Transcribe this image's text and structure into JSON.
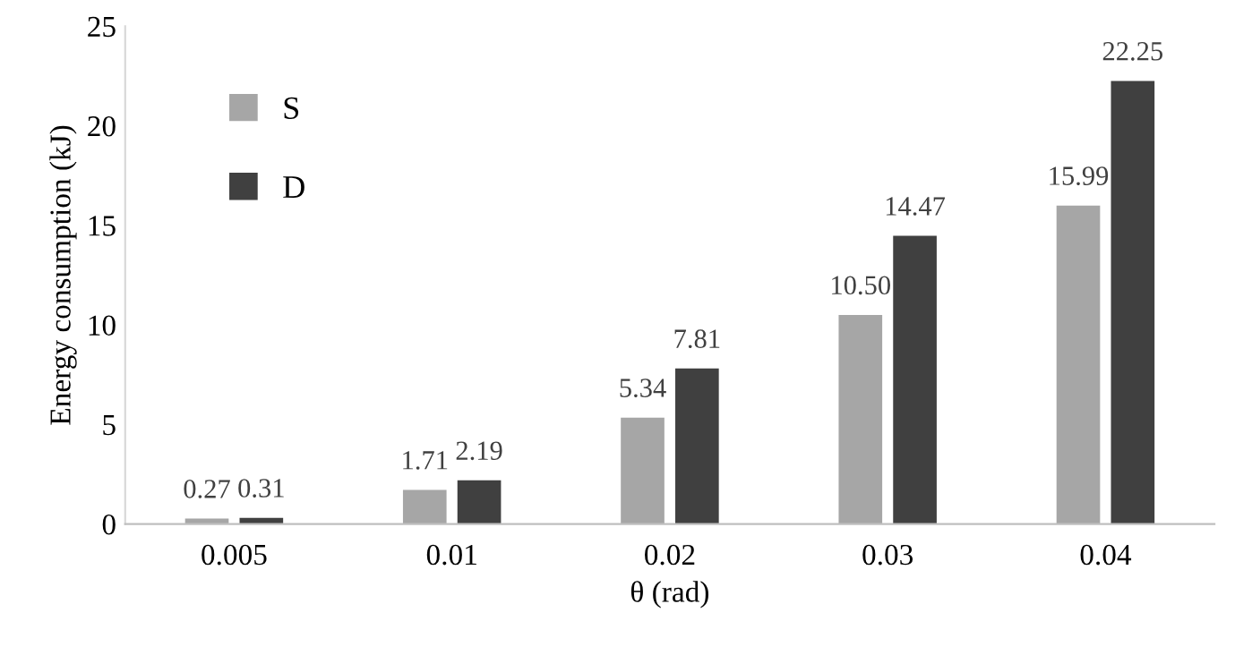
{
  "chart_data": {
    "type": "bar",
    "xlabel": "θ (rad)",
    "ylabel": "Energy consumption (kJ)",
    "categories": [
      "0.005",
      "0.01",
      "0.02",
      "0.03",
      "0.04"
    ],
    "series": [
      {
        "name": "S",
        "color": "#a6a6a6",
        "values": [
          0.27,
          1.71,
          5.34,
          10.5,
          15.99
        ],
        "value_labels": [
          "0.27",
          "1.71",
          "5.34",
          "10.50",
          "15.99"
        ]
      },
      {
        "name": "D",
        "color": "#404040",
        "values": [
          0.31,
          2.19,
          7.81,
          14.47,
          22.25
        ],
        "value_labels": [
          "0.31",
          "2.19",
          "7.81",
          "14.47",
          "22.25"
        ]
      }
    ],
    "ylim": [
      0,
      25
    ],
    "yticks": [
      0,
      5,
      10,
      15,
      20,
      25
    ],
    "grid": false,
    "legend": "top left"
  }
}
